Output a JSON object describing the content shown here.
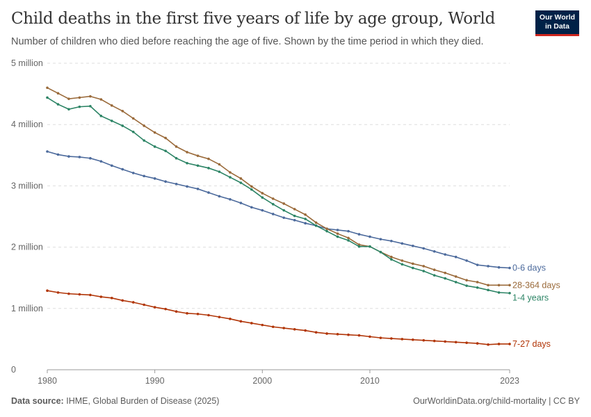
{
  "header": {
    "title": "Child deaths in the first five years of life by age group, World",
    "subtitle": "Number of children who died before reaching the age of five. Shown by the time period in which they died.",
    "logo_text": "Our World in Data"
  },
  "footer": {
    "source_label": "Data source:",
    "source": "IHME, Global Burden of Disease (2025)",
    "link": "OurWorldinData.org/child-mortality | CC BY"
  },
  "chart_data": {
    "type": "line",
    "title": "Child deaths in the first five years of life by age group, World",
    "xlim": [
      1980,
      2023
    ],
    "ylim": [
      0,
      5000000
    ],
    "x_ticks": [
      1980,
      1990,
      2000,
      2010,
      2023
    ],
    "y_ticks": [
      {
        "v": 0,
        "label": "0"
      },
      {
        "v": 1000000,
        "label": "1 million"
      },
      {
        "v": 2000000,
        "label": "2 million"
      },
      {
        "v": 3000000,
        "label": "3 million"
      },
      {
        "v": 4000000,
        "label": "4 million"
      },
      {
        "v": 5000000,
        "label": "5 million"
      }
    ],
    "grid": "horizontal dashed",
    "legend": "inline-right",
    "x_start": 1980,
    "series": [
      {
        "name": "0-6 days",
        "color": "#4c6a9c",
        "values_millions": [
          3.56,
          3.51,
          3.48,
          3.47,
          3.45,
          3.4,
          3.33,
          3.27,
          3.21,
          3.16,
          3.12,
          3.07,
          3.03,
          2.99,
          2.95,
          2.89,
          2.83,
          2.78,
          2.72,
          2.65,
          2.6,
          2.54,
          2.48,
          2.44,
          2.39,
          2.35,
          2.3,
          2.28,
          2.26,
          2.21,
          2.17,
          2.13,
          2.1,
          2.06,
          2.02,
          1.98,
          1.93,
          1.88,
          1.84,
          1.78,
          1.71,
          1.69,
          1.67,
          1.66
        ]
      },
      {
        "name": "28-364 days",
        "color": "#9a6a3a",
        "values_millions": [
          4.6,
          4.51,
          4.42,
          4.44,
          4.46,
          4.41,
          4.31,
          4.22,
          4.1,
          3.98,
          3.87,
          3.78,
          3.64,
          3.55,
          3.49,
          3.44,
          3.35,
          3.22,
          3.12,
          2.99,
          2.88,
          2.79,
          2.71,
          2.62,
          2.53,
          2.4,
          2.3,
          2.22,
          2.15,
          2.04,
          2.01,
          1.92,
          1.84,
          1.78,
          1.73,
          1.69,
          1.63,
          1.58,
          1.52,
          1.46,
          1.43,
          1.38,
          1.38,
          1.38
        ]
      },
      {
        "name": "1-4 years",
        "color": "#2c8465",
        "values_millions": [
          4.44,
          4.33,
          4.25,
          4.29,
          4.3,
          4.14,
          4.06,
          3.98,
          3.88,
          3.74,
          3.64,
          3.57,
          3.45,
          3.37,
          3.33,
          3.29,
          3.23,
          3.14,
          3.05,
          2.94,
          2.81,
          2.7,
          2.6,
          2.51,
          2.46,
          2.35,
          2.26,
          2.17,
          2.11,
          2.01,
          2.01,
          1.92,
          1.8,
          1.72,
          1.66,
          1.61,
          1.54,
          1.49,
          1.43,
          1.37,
          1.34,
          1.3,
          1.26,
          1.25
        ]
      },
      {
        "name": "7-27 days",
        "color": "#b13507",
        "values_millions": [
          1.29,
          1.26,
          1.24,
          1.23,
          1.22,
          1.19,
          1.17,
          1.13,
          1.1,
          1.06,
          1.02,
          0.99,
          0.95,
          0.92,
          0.91,
          0.89,
          0.86,
          0.83,
          0.79,
          0.76,
          0.73,
          0.7,
          0.68,
          0.66,
          0.64,
          0.61,
          0.59,
          0.58,
          0.57,
          0.56,
          0.54,
          0.52,
          0.51,
          0.5,
          0.49,
          0.48,
          0.47,
          0.46,
          0.45,
          0.44,
          0.43,
          0.41,
          0.42,
          0.42
        ]
      }
    ]
  }
}
